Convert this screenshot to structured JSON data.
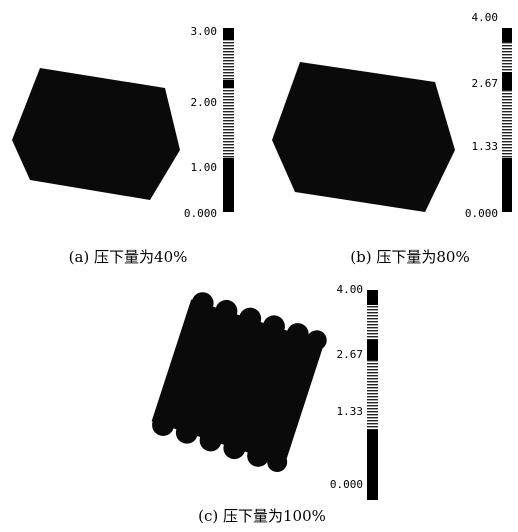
{
  "panels": [
    {
      "caption": "(a) 压下量为40%",
      "scale_labels": [
        "3.00",
        "2.00",
        "1.00",
        "0.000"
      ]
    },
    {
      "caption": "(b) 压下量为80%",
      "scale_labels": [
        "4.00",
        "2.67",
        "1.33",
        "0.000"
      ]
    },
    {
      "caption": "(c) 压下量为100%",
      "scale_labels": [
        "4.00",
        "2.67",
        "1.33",
        "0.000"
      ]
    }
  ]
}
